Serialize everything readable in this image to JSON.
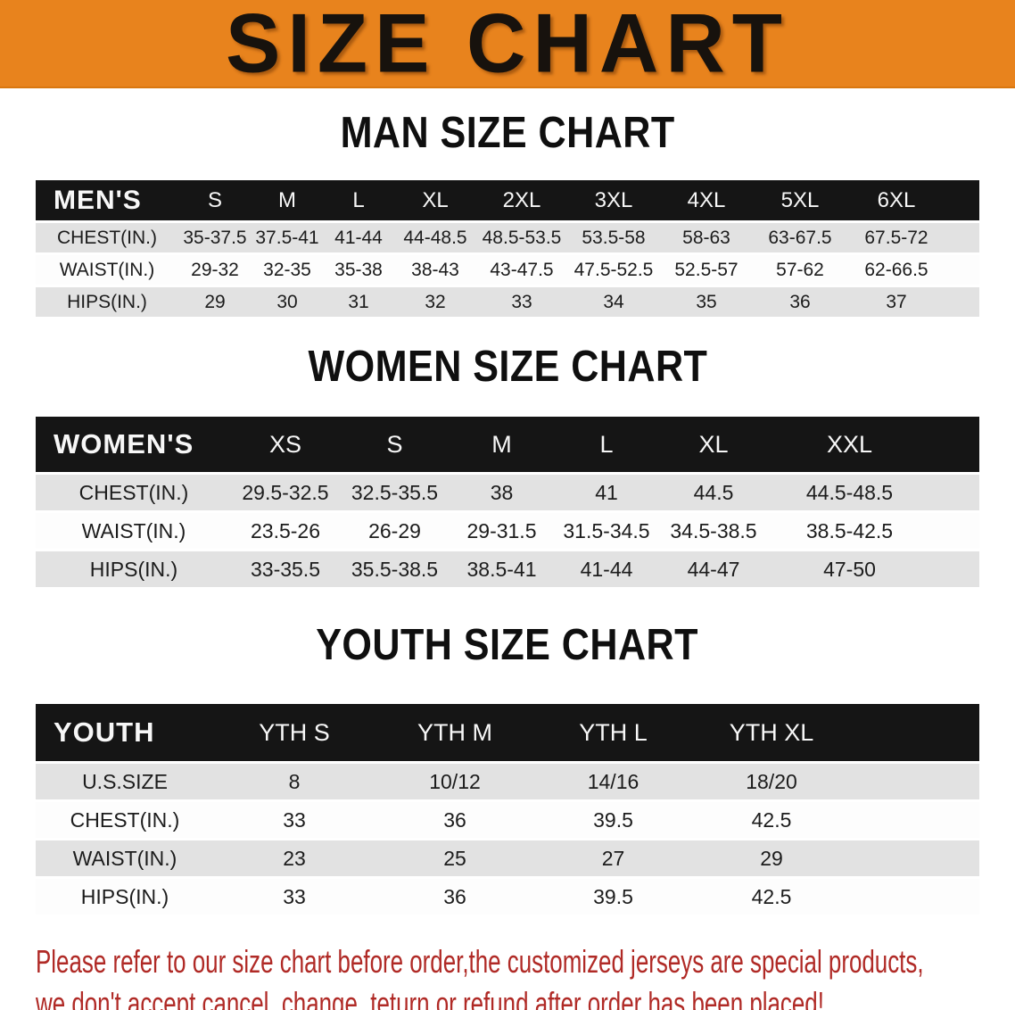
{
  "banner": {
    "title": "SIZE CHART"
  },
  "colors": {
    "banner_bg": "#e8831d",
    "header_bg": "#151515",
    "row_shade": "#e2e2e2",
    "disclaimer_red": "#b02a26"
  },
  "sections": [
    {
      "heading": "MAN SIZE CHART",
      "table": {
        "label": "MEN'S",
        "columns": [
          "S",
          "M",
          "L",
          "XL",
          "2XL",
          "3XL",
          "4XL",
          "5XL",
          "6XL"
        ],
        "rows": [
          {
            "label": "CHEST(IN.)",
            "values": [
              "35-37.5",
              "37.5-41",
              "41-44",
              "44-48.5",
              "48.5-53.5",
              "53.5-58",
              "58-63",
              "63-67.5",
              "67.5-72"
            ]
          },
          {
            "label": "WAIST(IN.)",
            "values": [
              "29-32",
              "32-35",
              "35-38",
              "38-43",
              "43-47.5",
              "47.5-52.5",
              "52.5-57",
              "57-62",
              "62-66.5"
            ]
          },
          {
            "label": "HIPS(IN.)",
            "values": [
              "29",
              "30",
              "31",
              "32",
              "33",
              "34",
              "35",
              "36",
              "37"
            ]
          }
        ]
      }
    },
    {
      "heading": "WOMEN SIZE CHART",
      "table": {
        "label": "WOMEN'S",
        "columns": [
          "XS",
          "S",
          "M",
          "L",
          "XL",
          "XXL"
        ],
        "rows": [
          {
            "label": "CHEST(IN.)",
            "values": [
              "29.5-32.5",
              "32.5-35.5",
              "38",
              "41",
              "44.5",
              "44.5-48.5"
            ]
          },
          {
            "label": "WAIST(IN.)",
            "values": [
              "23.5-26",
              "26-29",
              "29-31.5",
              "31.5-34.5",
              "34.5-38.5",
              "38.5-42.5"
            ]
          },
          {
            "label": "HIPS(IN.)",
            "values": [
              "33-35.5",
              "35.5-38.5",
              "38.5-41",
              "41-44",
              "44-47",
              "47-50"
            ]
          }
        ]
      }
    },
    {
      "heading": "YOUTH SIZE CHART",
      "table": {
        "label": "YOUTH",
        "columns": [
          "YTH S",
          "YTH M",
          "YTH L",
          "YTH XL"
        ],
        "rows": [
          {
            "label": "U.S.SIZE",
            "values": [
              "8",
              "10/12",
              "14/16",
              "18/20"
            ]
          },
          {
            "label": "CHEST(IN.)",
            "values": [
              "33",
              "36",
              "39.5",
              "42.5"
            ]
          },
          {
            "label": "WAIST(IN.)",
            "values": [
              "23",
              "25",
              "27",
              "29"
            ]
          },
          {
            "label": "HIPS(IN.)",
            "values": [
              "33",
              "36",
              "39.5",
              "42.5"
            ]
          }
        ]
      }
    }
  ],
  "disclaimer": {
    "line1": "Please refer to our size chart before order,the customized jerseys are special products,",
    "line2": "we don't accept cancel, change, teturn or refund after order has been placed!"
  }
}
